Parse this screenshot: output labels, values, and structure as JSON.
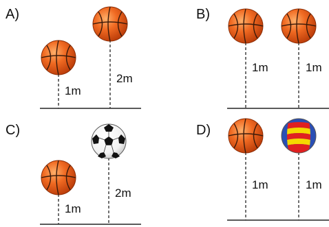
{
  "panels": [
    {
      "id": "A",
      "label": "A)",
      "balls": [
        {
          "type": "basketball",
          "height_label": "1m"
        },
        {
          "type": "basketball",
          "height_label": "2m"
        }
      ]
    },
    {
      "id": "B",
      "label": "B)",
      "balls": [
        {
          "type": "basketball",
          "height_label": "1m"
        },
        {
          "type": "basketball",
          "height_label": "1m"
        }
      ]
    },
    {
      "id": "C",
      "label": "C)",
      "balls": [
        {
          "type": "basketball",
          "height_label": "1m"
        },
        {
          "type": "soccer-ball",
          "height_label": "2m"
        }
      ]
    },
    {
      "id": "D",
      "label": "D)",
      "balls": [
        {
          "type": "basketball",
          "height_label": "1m"
        },
        {
          "type": "volleyball",
          "height_label": "1m"
        }
      ]
    }
  ],
  "colors": {
    "basketball": "#e8601c",
    "basketball_seam": "#3a1a0a",
    "soccer_black": "#111111",
    "volleyball_red": "#e02020",
    "volleyball_yellow": "#f5d800",
    "volleyball_blue": "#2a4fb5",
    "ground": "#222222"
  }
}
